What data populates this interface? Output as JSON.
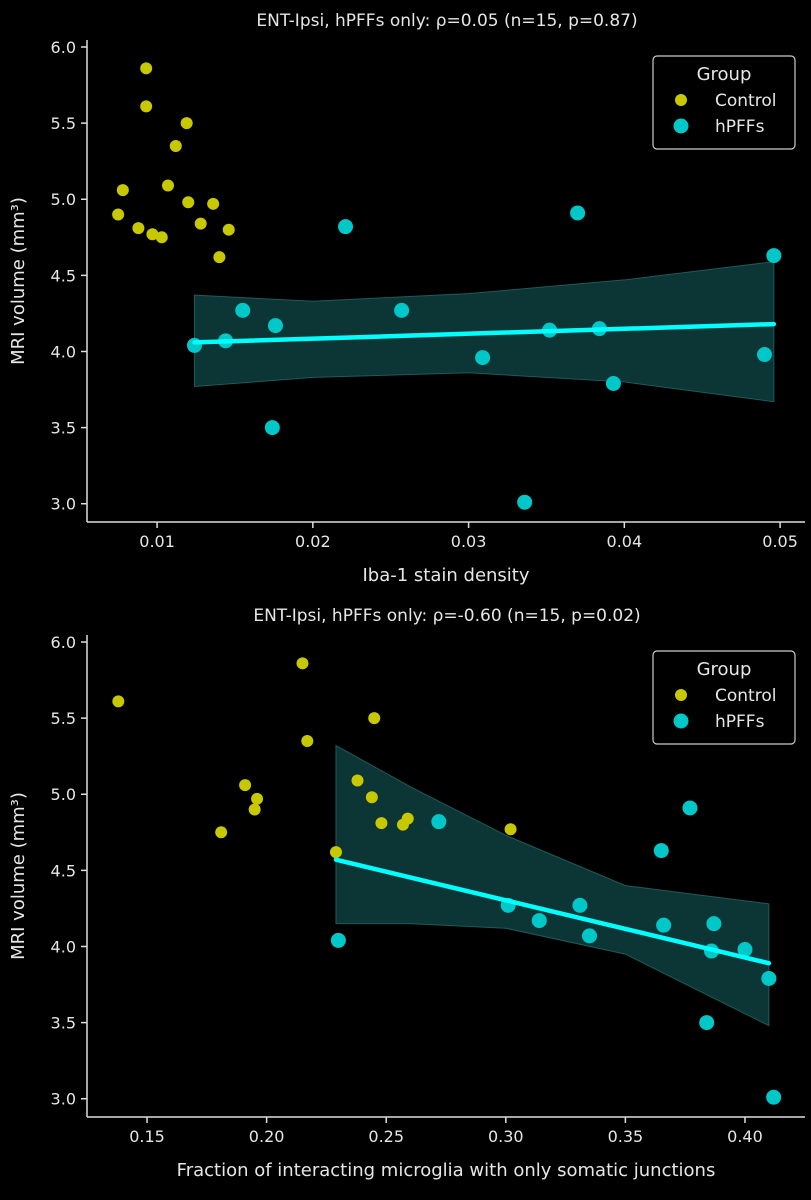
{
  "colors": {
    "Control": "#c8c800",
    "hPFFs": "#00c8c8",
    "fit_line": "#00ffff",
    "ci_band": "#0c3535",
    "background": "#000000",
    "axis": "#dddddd"
  },
  "chart_data": [
    {
      "type": "scatter",
      "title": "ENT-Ipsi, hPFFs only: ρ=0.05 (n=15, p=0.87)",
      "xlabel": "Iba-1 stain density",
      "ylabel": "MRI volume (mm³)",
      "xlim": [
        0.0055,
        0.0516
      ],
      "ylim": [
        2.88,
        6.046
      ],
      "xticks": [
        0.01,
        0.02,
        0.03,
        0.04,
        0.05
      ],
      "xtick_labels": [
        "0.01",
        "0.02",
        "0.03",
        "0.04",
        "0.05"
      ],
      "yticks": [
        3.0,
        3.5,
        4.0,
        4.5,
        5.0,
        5.5,
        6.0
      ],
      "ytick_labels": [
        "3.0",
        "3.5",
        "4.0",
        "4.5",
        "5.0",
        "5.5",
        "6.0"
      ],
      "legend": {
        "title": "Group",
        "position": "top-right",
        "entries": [
          "Control",
          "hPFFs"
        ]
      },
      "series": [
        {
          "name": "Control",
          "x": [
            0.0075,
            0.0078,
            0.0093,
            0.0093,
            0.0088,
            0.0097,
            0.0103,
            0.0107,
            0.0112,
            0.0119,
            0.012,
            0.0128,
            0.0136,
            0.014,
            0.0146
          ],
          "y": [
            4.9,
            5.06,
            5.86,
            5.61,
            4.81,
            4.77,
            4.75,
            5.09,
            5.35,
            5.5,
            4.98,
            4.84,
            4.97,
            4.62,
            4.8
          ]
        },
        {
          "name": "hPFFs",
          "x": [
            0.0124,
            0.0144,
            0.0155,
            0.0176,
            0.0174,
            0.0221,
            0.0257,
            0.0309,
            0.0336,
            0.0352,
            0.037,
            0.0384,
            0.0393,
            0.049,
            0.0496
          ],
          "y": [
            4.04,
            4.07,
            4.27,
            4.17,
            3.5,
            4.82,
            4.27,
            3.96,
            3.01,
            4.14,
            4.91,
            4.15,
            3.79,
            3.98,
            4.63
          ]
        }
      ],
      "fit": {
        "x": [
          0.0124,
          0.0496
        ],
        "y": [
          4.06,
          4.18
        ]
      },
      "ci": {
        "x": [
          0.0124,
          0.02,
          0.03,
          0.04,
          0.0496
        ],
        "lower": [
          3.77,
          3.83,
          3.86,
          3.8,
          3.67
        ],
        "upper": [
          4.37,
          4.33,
          4.38,
          4.47,
          4.59
        ]
      }
    },
    {
      "type": "scatter",
      "title": "ENT-Ipsi, hPFFs only: ρ=-0.60 (n=15, p=0.02)",
      "xlabel": "Fraction of interacting microglia with only somatic junctions",
      "ylabel": "MRI volume (mm³)",
      "xlim": [
        0.1249,
        0.4251
      ],
      "ylim": [
        2.88,
        6.046
      ],
      "xticks": [
        0.15,
        0.2,
        0.25,
        0.3,
        0.35,
        0.4
      ],
      "xtick_labels": [
        "0.15",
        "0.20",
        "0.25",
        "0.30",
        "0.35",
        "0.40"
      ],
      "yticks": [
        3.0,
        3.5,
        4.0,
        4.5,
        5.0,
        5.5,
        6.0
      ],
      "ytick_labels": [
        "3.0",
        "3.5",
        "4.0",
        "4.5",
        "5.0",
        "5.5",
        "6.0"
      ],
      "legend": {
        "title": "Group",
        "position": "top-right",
        "entries": [
          "Control",
          "hPFFs"
        ]
      },
      "series": [
        {
          "name": "Control",
          "x": [
            0.138,
            0.181,
            0.191,
            0.195,
            0.196,
            0.215,
            0.217,
            0.229,
            0.238,
            0.244,
            0.245,
            0.248,
            0.257,
            0.259,
            0.302
          ],
          "y": [
            5.61,
            4.75,
            5.06,
            4.9,
            4.97,
            5.86,
            5.35,
            4.62,
            5.09,
            4.98,
            5.5,
            4.81,
            4.8,
            4.84,
            4.77
          ]
        },
        {
          "name": "hPFFs",
          "x": [
            0.23,
            0.272,
            0.301,
            0.314,
            0.331,
            0.335,
            0.365,
            0.366,
            0.377,
            0.386,
            0.387,
            0.384,
            0.4,
            0.41,
            0.412
          ],
          "y": [
            4.04,
            4.82,
            4.27,
            4.17,
            4.27,
            4.07,
            4.63,
            4.14,
            4.91,
            3.97,
            4.15,
            3.5,
            3.98,
            3.79,
            3.01
          ]
        }
      ],
      "fit": {
        "x": [
          0.229,
          0.41
        ],
        "y": [
          4.57,
          3.89
        ]
      },
      "ci": {
        "x": [
          0.229,
          0.26,
          0.3,
          0.35,
          0.41
        ],
        "lower": [
          4.15,
          4.15,
          4.12,
          3.95,
          3.48
        ],
        "upper": [
          5.32,
          5.05,
          4.73,
          4.4,
          4.28
        ]
      }
    }
  ]
}
